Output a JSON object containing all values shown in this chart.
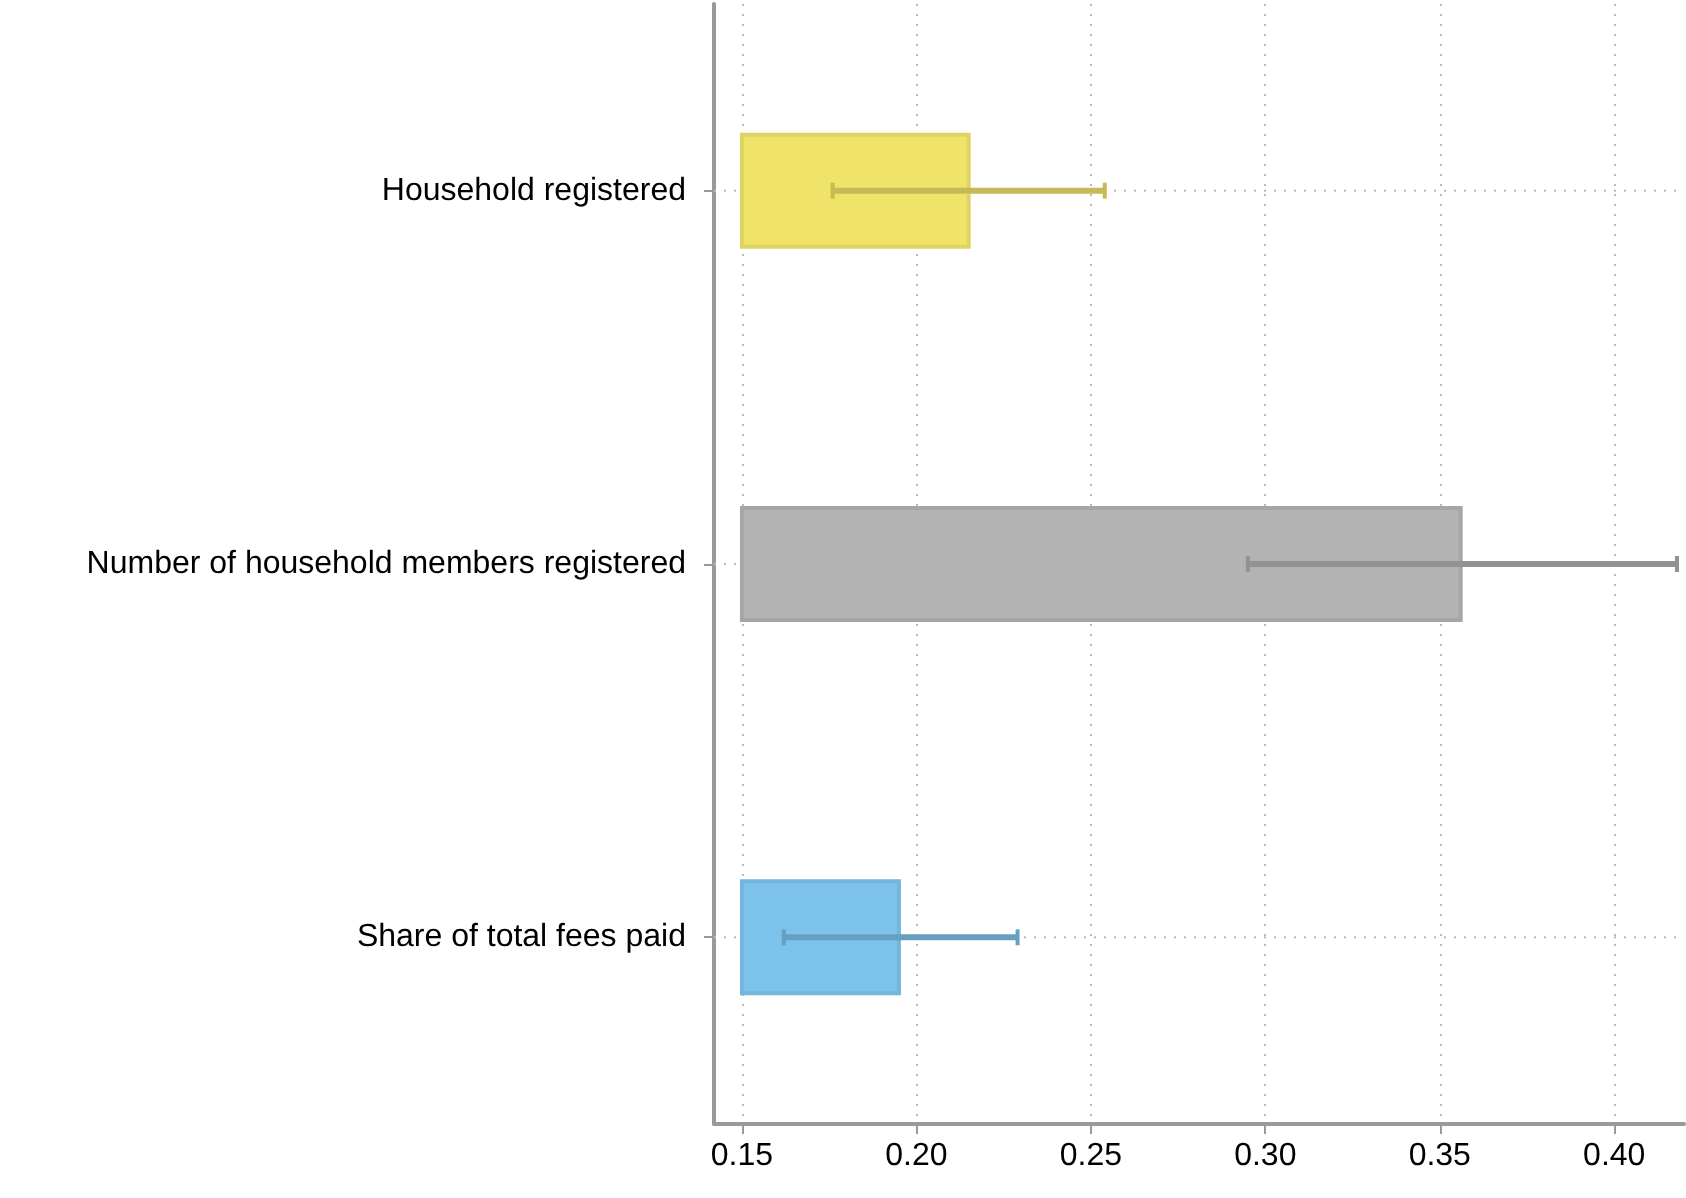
{
  "chart_data": {
    "type": "bar",
    "orientation": "horizontal",
    "categories": [
      "Household registered",
      "Number of household members registered",
      "Share of total fees paid"
    ],
    "base": [
      0.15,
      0.15,
      0.15
    ],
    "values": [
      0.065,
      0.206,
      0.045
    ],
    "errors": [
      [
        0.176,
        0.254
      ],
      [
        0.295,
        0.418
      ],
      [
        0.162,
        0.229
      ]
    ],
    "colors": [
      "#f0e36a",
      "#b3b3b3",
      "#7cc3eb"
    ],
    "xlim": [
      0.142,
      0.42
    ],
    "xticks": [
      {
        "value": 0.15,
        "label": "0.15"
      },
      {
        "value": 0.2,
        "label": "0.20"
      },
      {
        "value": 0.25,
        "label": "0.25"
      },
      {
        "value": 0.3,
        "label": "0.30"
      },
      {
        "value": 0.35,
        "label": "0.35"
      },
      {
        "value": 0.4,
        "label": "0.40"
      }
    ],
    "grid": true
  }
}
